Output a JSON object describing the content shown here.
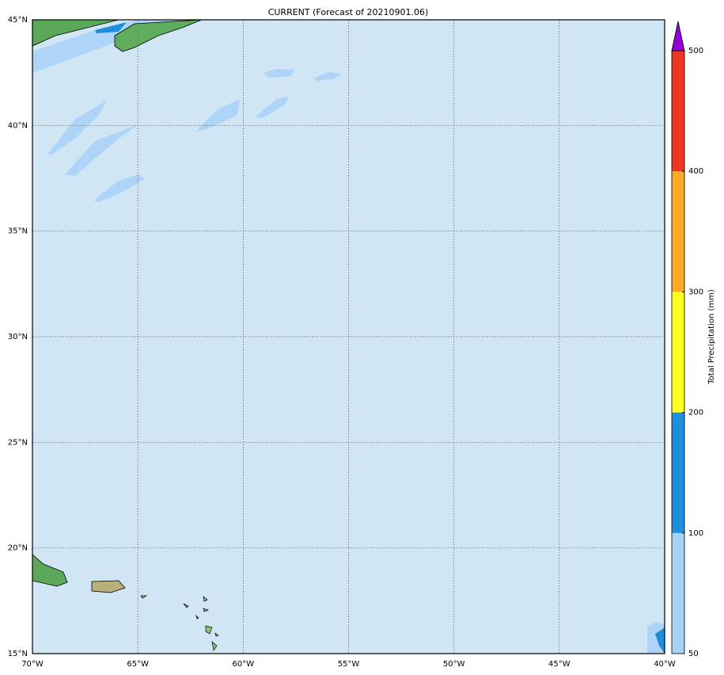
{
  "chart_data": {
    "type": "map",
    "title": "CURRENT (Forecast of 20210901.06)",
    "xlim": [
      -70,
      -40
    ],
    "ylim": [
      15,
      45
    ],
    "xticks": [
      {
        "value": -70,
        "label": "70°W"
      },
      {
        "value": -65,
        "label": "65°W"
      },
      {
        "value": -60,
        "label": "60°W"
      },
      {
        "value": -55,
        "label": "55°W"
      },
      {
        "value": -50,
        "label": "50°W"
      },
      {
        "value": -45,
        "label": "45°W"
      },
      {
        "value": -40,
        "label": "40°W"
      }
    ],
    "yticks": [
      {
        "value": 15,
        "label": "15°N"
      },
      {
        "value": 20,
        "label": "20°N"
      },
      {
        "value": 25,
        "label": "25°N"
      },
      {
        "value": 30,
        "label": "30°N"
      },
      {
        "value": 35,
        "label": "35°N"
      },
      {
        "value": 40,
        "label": "40°N"
      },
      {
        "value": 45,
        "label": "45°N"
      }
    ],
    "grid": true,
    "background": "#d0e6f5",
    "colorbar": {
      "label": "Total Precipitation (mm)",
      "levels": [
        50,
        100,
        200,
        300,
        400,
        500
      ],
      "colors": [
        "#a6d2f5",
        "#1e8fdc",
        "#ffff1e",
        "#fbab26",
        "#f03523"
      ],
      "extend_color": "#9400d3"
    }
  }
}
